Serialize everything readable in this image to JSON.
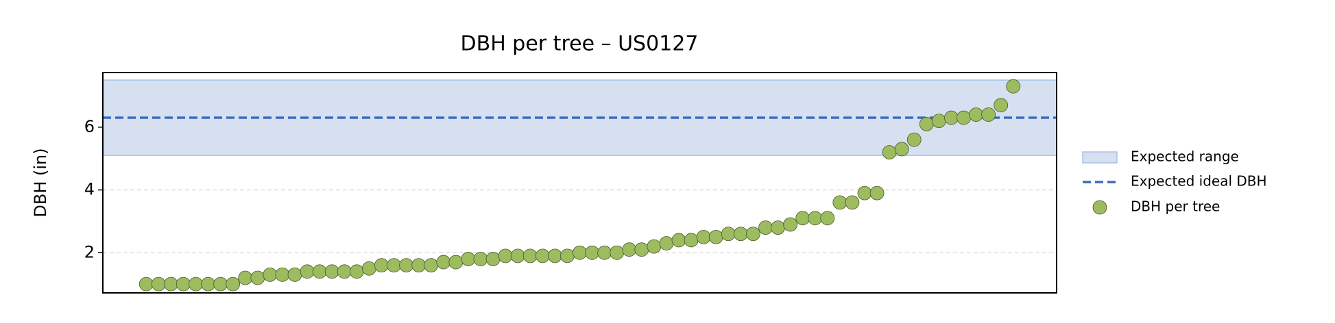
{
  "chart_data": {
    "type": "scatter",
    "title": "DBH per tree – US0127",
    "title_color": "#3a6bbf",
    "y_label": "DBH (in)",
    "ylim": [
      0.72,
      7.74
    ],
    "yticks": [
      2,
      4,
      6
    ],
    "grid": true,
    "legend": "right",
    "bands": [
      {
        "name": "Expected range",
        "low": 5.1,
        "high": 7.5,
        "color": "#d6e0f1",
        "edge": "#a8c0e8"
      }
    ],
    "reference_lines": [
      {
        "name": "Expected ideal DBH",
        "value": 6.3,
        "color": "#3a6bbf"
      }
    ],
    "series": [
      {
        "name": "DBH per tree",
        "color": "#9dbb5f",
        "edge": "#4a5a2a",
        "values": [
          1.0,
          1.0,
          1.0,
          1.0,
          1.0,
          1.0,
          1.0,
          1.0,
          1.2,
          1.2,
          1.3,
          1.3,
          1.3,
          1.4,
          1.4,
          1.4,
          1.4,
          1.4,
          1.5,
          1.6,
          1.6,
          1.6,
          1.6,
          1.6,
          1.7,
          1.7,
          1.8,
          1.8,
          1.8,
          1.9,
          1.9,
          1.9,
          1.9,
          1.9,
          1.9,
          2.0,
          2.0,
          2.0,
          2.0,
          2.1,
          2.1,
          2.2,
          2.3,
          2.4,
          2.4,
          2.5,
          2.5,
          2.6,
          2.6,
          2.6,
          2.8,
          2.8,
          2.9,
          3.1,
          3.1,
          3.1,
          3.6,
          3.6,
          3.9,
          3.9,
          5.2,
          5.3,
          5.6,
          6.1,
          6.2,
          6.3,
          6.3,
          6.4,
          6.4,
          6.7,
          7.3
        ]
      }
    ]
  }
}
